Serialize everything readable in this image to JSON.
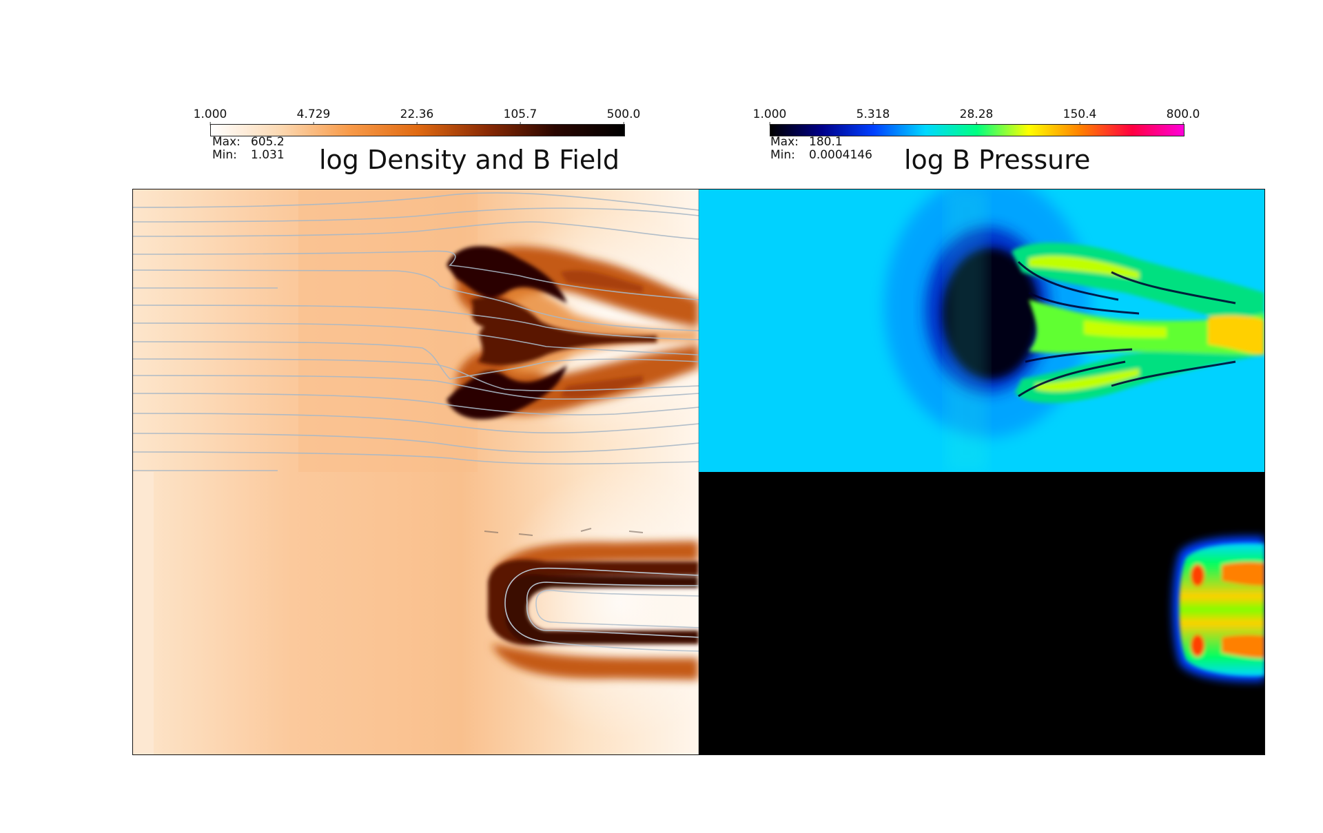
{
  "left_panel": {
    "title": "log Density and B Field",
    "colorbar_ticks": [
      "1.000",
      "4.729",
      "22.36",
      "105.7",
      "500.0"
    ],
    "max_label": "Max:",
    "max_value": "605.2",
    "min_label": "Min:",
    "min_value": "1.031",
    "colormap": [
      "#ffffff",
      "#fcd9b3",
      "#f89b4a",
      "#e06a12",
      "#8a2a04",
      "#2a0600",
      "#000000"
    ]
  },
  "right_panel": {
    "title": "log B Pressure",
    "colorbar_ticks": [
      "1.000",
      "5.318",
      "28.28",
      "150.4",
      "800.0"
    ],
    "max_label": "Max:",
    "max_value": "180.1",
    "min_label": "Min:",
    "min_value": "0.0004146",
    "colormap": [
      "#000000",
      "#00008a",
      "#0040ff",
      "#00d8ff",
      "#00ff80",
      "#ffff00",
      "#ff8000",
      "#ff0040",
      "#ff00d8"
    ]
  }
}
